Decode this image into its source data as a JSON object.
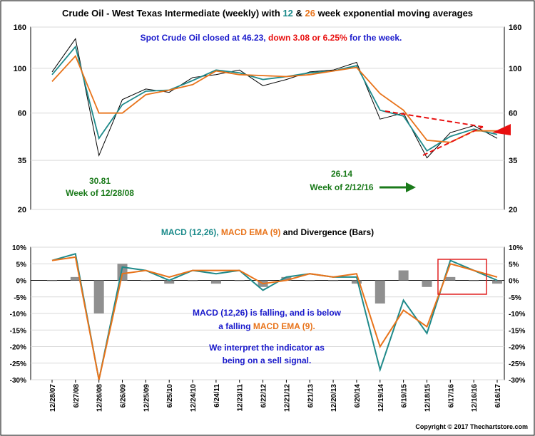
{
  "title_parts": {
    "prefix": "Crude Oil - West Texas Intermediate (weekly) with ",
    "fast": "12",
    "amp": " & ",
    "slow": "26",
    "suffix": " week exponential moving averages"
  },
  "spot_note": {
    "part1": "Spot Crude Oil closed at 46.23, ",
    "part2": "down 3.08 or 6.25%",
    "part3": " for the week."
  },
  "callouts": {
    "low_2008_value": "30.81",
    "low_2008_week": "Week of 12/28/08",
    "low_2016_value": "26.14",
    "low_2016_week": "Week of 2/12/16"
  },
  "macd_title": {
    "part1": "MACD (12,26), ",
    "part2": "MACD EMA (9)",
    "part3": " and Divergence (Bars)"
  },
  "macd_note": {
    "line1": "MACD (12,26) is falling, and is below",
    "line2a": "a falling ",
    "line2b": "MACD EMA (9).",
    "line3": "We interpret the indicator as",
    "line4": "being on a sell signal."
  },
  "copyright": "Copyright © 2017 Thechartstore.com",
  "colors": {
    "price": "#000000",
    "ema12": "#1f8a8a",
    "ema26": "#e8731a",
    "macd": "#1f8a8a",
    "macd_ema": "#e8731a",
    "divergence_bars": "#909090",
    "title_blue": "#1a1acc",
    "note_red": "#e81010",
    "callout_green": "#1a7a1a",
    "highlight_box": "#e02020"
  },
  "chart_data": [
    {
      "type": "line",
      "scale": "log",
      "ylim": [
        20,
        160
      ],
      "y_ticks": [
        20,
        35,
        60,
        100,
        160
      ],
      "x_ticks": [
        "12/28/07",
        "6/27/08",
        "12/26/08",
        "6/26/09",
        "12/25/09",
        "6/25/10",
        "12/24/10",
        "6/24/11",
        "12/23/11",
        "6/22/12",
        "12/21/12",
        "6/21/13",
        "12/20/13",
        "6/20/14",
        "12/19/14",
        "6/19/15",
        "12/18/15",
        "6/17/16",
        "12/16/16",
        "6/16/17"
      ],
      "x": [
        "12/28/07",
        "6/27/08",
        "12/26/08",
        "6/26/09",
        "12/25/09",
        "6/25/10",
        "12/24/10",
        "6/24/11",
        "12/23/11",
        "6/22/12",
        "12/21/12",
        "6/21/13",
        "12/20/13",
        "6/20/14",
        "12/19/14",
        "6/19/15",
        "12/18/15",
        "6/17/16",
        "12/16/16",
        "6/16/17"
      ],
      "series": [
        {
          "name": "Price",
          "values": [
            96,
            140,
            37,
            70,
            79,
            76,
            90,
            93,
            98,
            82,
            88,
            96,
            98,
            107,
            56,
            60,
            36,
            48,
            52,
            45
          ]
        },
        {
          "name": "12",
          "values": [
            93,
            128,
            45,
            66,
            77,
            78,
            87,
            98,
            95,
            88,
            91,
            95,
            97,
            103,
            62,
            58,
            39,
            46,
            50,
            47
          ]
        },
        {
          "name": "26",
          "values": [
            86,
            115,
            60,
            60,
            74,
            78,
            83,
            97,
            93,
            92,
            91,
            93,
            97,
            101,
            75,
            62,
            44,
            43,
            49,
            49
          ]
        }
      ],
      "annotations": [
        {
          "value": 30.81,
          "date": "12/28/08"
        },
        {
          "value": 26.14,
          "date": "2/12/16"
        }
      ]
    },
    {
      "type": "line",
      "ylim": [
        -30,
        10
      ],
      "y_ticks": [
        "10%",
        "5%",
        "0%",
        "-5%",
        "-10%",
        "-15%",
        "-20%",
        "-25%",
        "-30%"
      ],
      "x": [
        "12/28/07",
        "6/27/08",
        "12/26/08",
        "6/26/09",
        "12/25/09",
        "6/25/10",
        "12/24/10",
        "6/24/11",
        "12/23/11",
        "6/22/12",
        "12/21/12",
        "6/21/13",
        "12/20/13",
        "6/20/14",
        "12/19/14",
        "6/19/15",
        "12/18/15",
        "6/17/16",
        "12/16/16",
        "6/16/17"
      ],
      "series": [
        {
          "name": "MACD (12,26)",
          "values": [
            6,
            8,
            -30,
            4,
            3,
            0,
            3,
            2,
            3,
            -3,
            1,
            2,
            1,
            1,
            -27,
            -6,
            -16,
            6,
            3,
            0
          ]
        },
        {
          "name": "MACD EMA (9)",
          "values": [
            6,
            7,
            -30,
            2,
            3,
            1,
            3,
            3,
            3,
            -1,
            0,
            2,
            1,
            2,
            -20,
            -9,
            -14,
            5,
            3,
            1
          ]
        },
        {
          "name": "Divergence (Bars)",
          "values": [
            0,
            1,
            -10,
            5,
            0,
            -1,
            0,
            -1,
            0,
            -2,
            1,
            0,
            0,
            -1,
            -7,
            3,
            -2,
            1,
            0,
            -1
          ]
        }
      ]
    }
  ]
}
